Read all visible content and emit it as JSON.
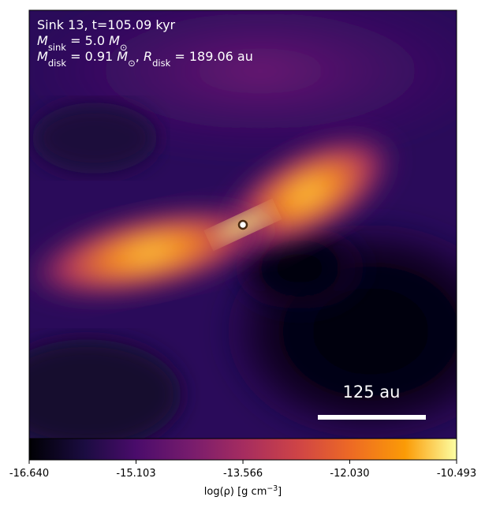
{
  "chart_data": {
    "type": "heatmap",
    "annotations": [
      [
        {
          "text": "Sink 13, t=105.09 kyr"
        }
      ],
      [
        {
          "text": "M",
          "style": "math"
        },
        {
          "text": "sink",
          "style": "sub"
        },
        {
          "text": " = 5.0 "
        },
        {
          "text": "M",
          "style": "math"
        },
        {
          "text": "⊙",
          "style": "sub"
        }
      ],
      [
        {
          "text": "M",
          "style": "math"
        },
        {
          "text": "disk",
          "style": "sub"
        },
        {
          "text": " = 0.91 "
        },
        {
          "text": "M",
          "style": "math"
        },
        {
          "text": "⊙",
          "style": "sub"
        },
        {
          "text": ", "
        },
        {
          "text": "R",
          "style": "math"
        },
        {
          "text": "disk",
          "style": "sub"
        },
        {
          "text": " = 189.06 au"
        }
      ]
    ],
    "scale_bar_label": "125 au",
    "colorbar": {
      "label": [
        {
          "text": "log(ρ) [g cm"
        },
        {
          "text": "−3",
          "style": "sup"
        },
        {
          "text": "]"
        }
      ],
      "clim": [
        -16.64,
        -10.493
      ],
      "ticks": [
        {
          "value": -16.64,
          "label": "-16.640"
        },
        {
          "value": -15.103,
          "label": "-15.103"
        },
        {
          "value": -13.566,
          "label": "-13.566"
        },
        {
          "value": -12.03,
          "label": "-12.030"
        },
        {
          "value": -10.493,
          "label": "-10.493"
        }
      ],
      "colormap": "inferno"
    }
  }
}
